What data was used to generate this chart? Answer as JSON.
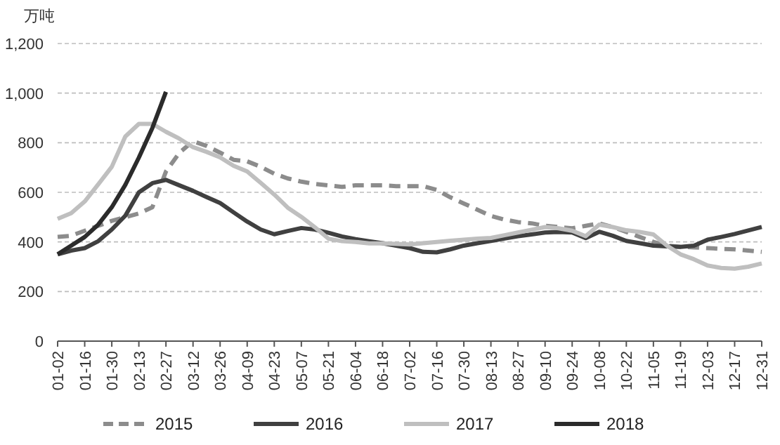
{
  "chart_data": {
    "type": "line",
    "ylabel": "万吨",
    "categories": [
      "01-02",
      null,
      "01-16",
      null,
      "01-30",
      null,
      "02-13",
      null,
      "02-27",
      null,
      "03-12",
      null,
      "03-26",
      null,
      "04-09",
      null,
      "04-23",
      null,
      "05-07",
      null,
      "05-21",
      null,
      "06-04",
      null,
      "06-18",
      null,
      "07-02",
      null,
      "07-16",
      null,
      "07-30",
      null,
      "08-13",
      null,
      "08-27",
      null,
      "09-10",
      null,
      "09-24",
      null,
      "10-08",
      null,
      "10-22",
      null,
      "11-05",
      null,
      "11-19",
      null,
      "12-03",
      null,
      "12-17",
      null,
      "12-31"
    ],
    "ylim": [
      0,
      1200
    ],
    "yticks": [
      {
        "value": 0,
        "label": "0"
      },
      {
        "value": 200,
        "label": "200"
      },
      {
        "value": 400,
        "label": "400"
      },
      {
        "value": 600,
        "label": "600"
      },
      {
        "value": 800,
        "label": "800"
      },
      {
        "value": 1000,
        "label": "1,000"
      },
      {
        "value": 1200,
        "label": "1,200"
      }
    ],
    "grid": "y",
    "legend": "bottom",
    "marker": "none",
    "series": [
      {
        "name": "2015",
        "color": "#8c8c8c",
        "line_style": "dashed",
        "values": [
          420,
          425,
          445,
          465,
          485,
          500,
          515,
          540,
          684,
          760,
          806,
          787,
          760,
          731,
          725,
          703,
          675,
          656,
          643,
          634,
          628,
          622,
          628,
          628,
          628,
          625,
          625,
          625,
          610,
          580,
          555,
          530,
          505,
          490,
          480,
          475,
          465,
          460,
          455,
          465,
          475,
          460,
          440,
          420,
          400,
          385,
          380,
          378,
          375,
          372,
          370,
          365,
          360
        ]
      },
      {
        "name": "2016",
        "color": "#404040",
        "line_style": "solid",
        "values": [
          350,
          365,
          375,
          403,
          450,
          506,
          600,
          637,
          650,
          628,
          606,
          581,
          557,
          519,
          482,
          450,
          431,
          444,
          456,
          450,
          437,
          422,
          411,
          403,
          395,
          385,
          375,
          360,
          358,
          370,
          385,
          395,
          404,
          414,
          423,
          430,
          438,
          440,
          438,
          415,
          441,
          425,
          404,
          395,
          385,
          382,
          380,
          385,
          409,
          420,
          432,
          446,
          460
        ]
      },
      {
        "name": "2017",
        "color": "#bfbfbf",
        "line_style": "solid",
        "values": [
          493,
          516,
          563,
          632,
          703,
          825,
          876,
          876,
          844,
          816,
          782,
          763,
          741,
          707,
          684,
          638,
          591,
          538,
          501,
          459,
          413,
          403,
          400,
          394,
          394,
          392,
          390,
          395,
          400,
          405,
          409,
          413,
          416,
          427,
          438,
          449,
          460,
          455,
          445,
          423,
          470,
          460,
          447,
          440,
          430,
          385,
          350,
          330,
          305,
          295,
          292,
          300,
          313
        ]
      },
      {
        "name": "2018",
        "color": "#2b2b2b",
        "line_style": "solid",
        "values": [
          350,
          385,
          420,
          470,
          540,
          630,
          740,
          860,
          1005,
          null,
          null,
          null,
          null,
          null,
          null,
          null,
          null,
          null,
          null,
          null,
          null,
          null,
          null,
          null,
          null,
          null,
          null,
          null,
          null,
          null,
          null,
          null,
          null,
          null,
          null,
          null,
          null,
          null,
          null,
          null,
          null,
          null,
          null,
          null,
          null,
          null,
          null,
          null,
          null,
          null,
          null,
          null,
          null
        ]
      }
    ]
  }
}
